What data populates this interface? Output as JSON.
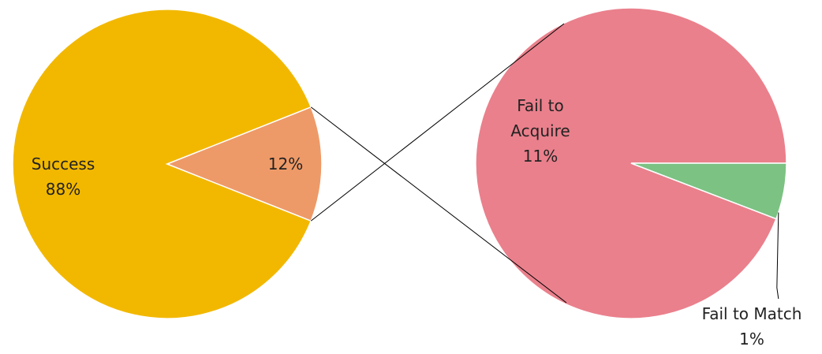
{
  "chart_data": [
    {
      "type": "pie",
      "categories": [
        "Success",
        null
      ],
      "values": [
        88,
        12
      ],
      "value_labels": [
        "88%",
        "12%"
      ],
      "colors": [
        "#f2b800",
        "#ee9a68"
      ]
    },
    {
      "type": "pie",
      "categories": [
        "Fail to Acquire",
        "Fail to Match"
      ],
      "values": [
        11.3,
        0.7
      ],
      "value_labels": [
        "11%",
        "1%"
      ],
      "colors": [
        "#ea808c",
        "#7cc283"
      ]
    }
  ]
}
